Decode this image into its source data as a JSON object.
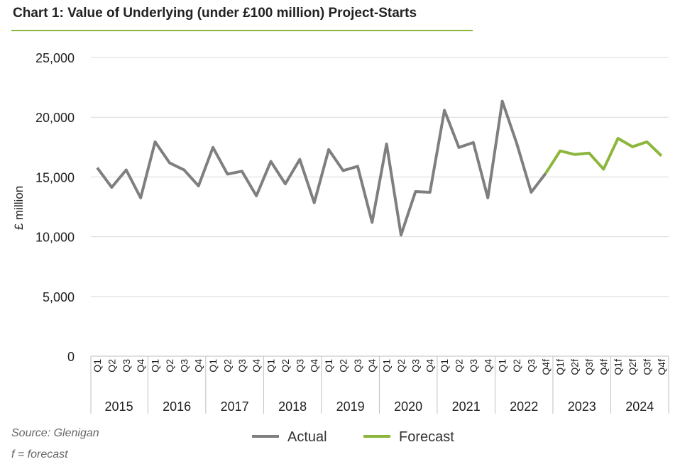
{
  "chart_data": {
    "type": "line",
    "title": "Chart 1: Value of Underlying (under £100 million) Project-Starts",
    "ylabel": "£ million",
    "xlabel": "",
    "ylim": [
      0,
      25000
    ],
    "yticks": [
      0,
      5000,
      10000,
      15000,
      20000,
      25000
    ],
    "ytick_labels": [
      "0",
      "5,000",
      "10,000",
      "15,000",
      "20,000",
      "25,000"
    ],
    "grid": true,
    "legend_position": "bottom",
    "years": [
      "2015",
      "2016",
      "2017",
      "2018",
      "2019",
      "2020",
      "2021",
      "2022",
      "2023",
      "2024"
    ],
    "quarters": [
      "Q1",
      "Q2",
      "Q3",
      "Q4",
      "Q1",
      "Q2",
      "Q3",
      "Q4",
      "Q1",
      "Q2",
      "Q3",
      "Q4",
      "Q1",
      "Q2",
      "Q3",
      "Q4",
      "Q1",
      "Q2",
      "Q3",
      "Q4",
      "Q1",
      "Q2",
      "Q3",
      "Q4",
      "Q1",
      "Q2",
      "Q3",
      "Q4",
      "Q1",
      "Q2",
      "Q3",
      "Q4f",
      "Q1f",
      "Q2f",
      "Q3f",
      "Q4f",
      "Q1f",
      "Q2f",
      "Q3f",
      "Q4f"
    ],
    "series": [
      {
        "name": "Actual",
        "color": "#7f7f7f",
        "start_index": 0,
        "values": [
          15770,
          14130,
          15590,
          13250,
          17940,
          16180,
          15590,
          14250,
          17470,
          15240,
          15480,
          13420,
          16300,
          14420,
          16470,
          12840,
          17290,
          15530,
          15890,
          11200,
          17760,
          10140,
          13780,
          13720,
          20580,
          17470,
          17880,
          13250,
          21340,
          17800,
          13720,
          15300
        ]
      },
      {
        "name": "Forecast",
        "color": "#8db63c",
        "start_index": 31,
        "values": [
          15300,
          17180,
          16880,
          17000,
          15650,
          18230,
          17530,
          17940,
          16770
        ]
      }
    ]
  },
  "source": "Source: Glenigan",
  "footnote": "f = forecast"
}
